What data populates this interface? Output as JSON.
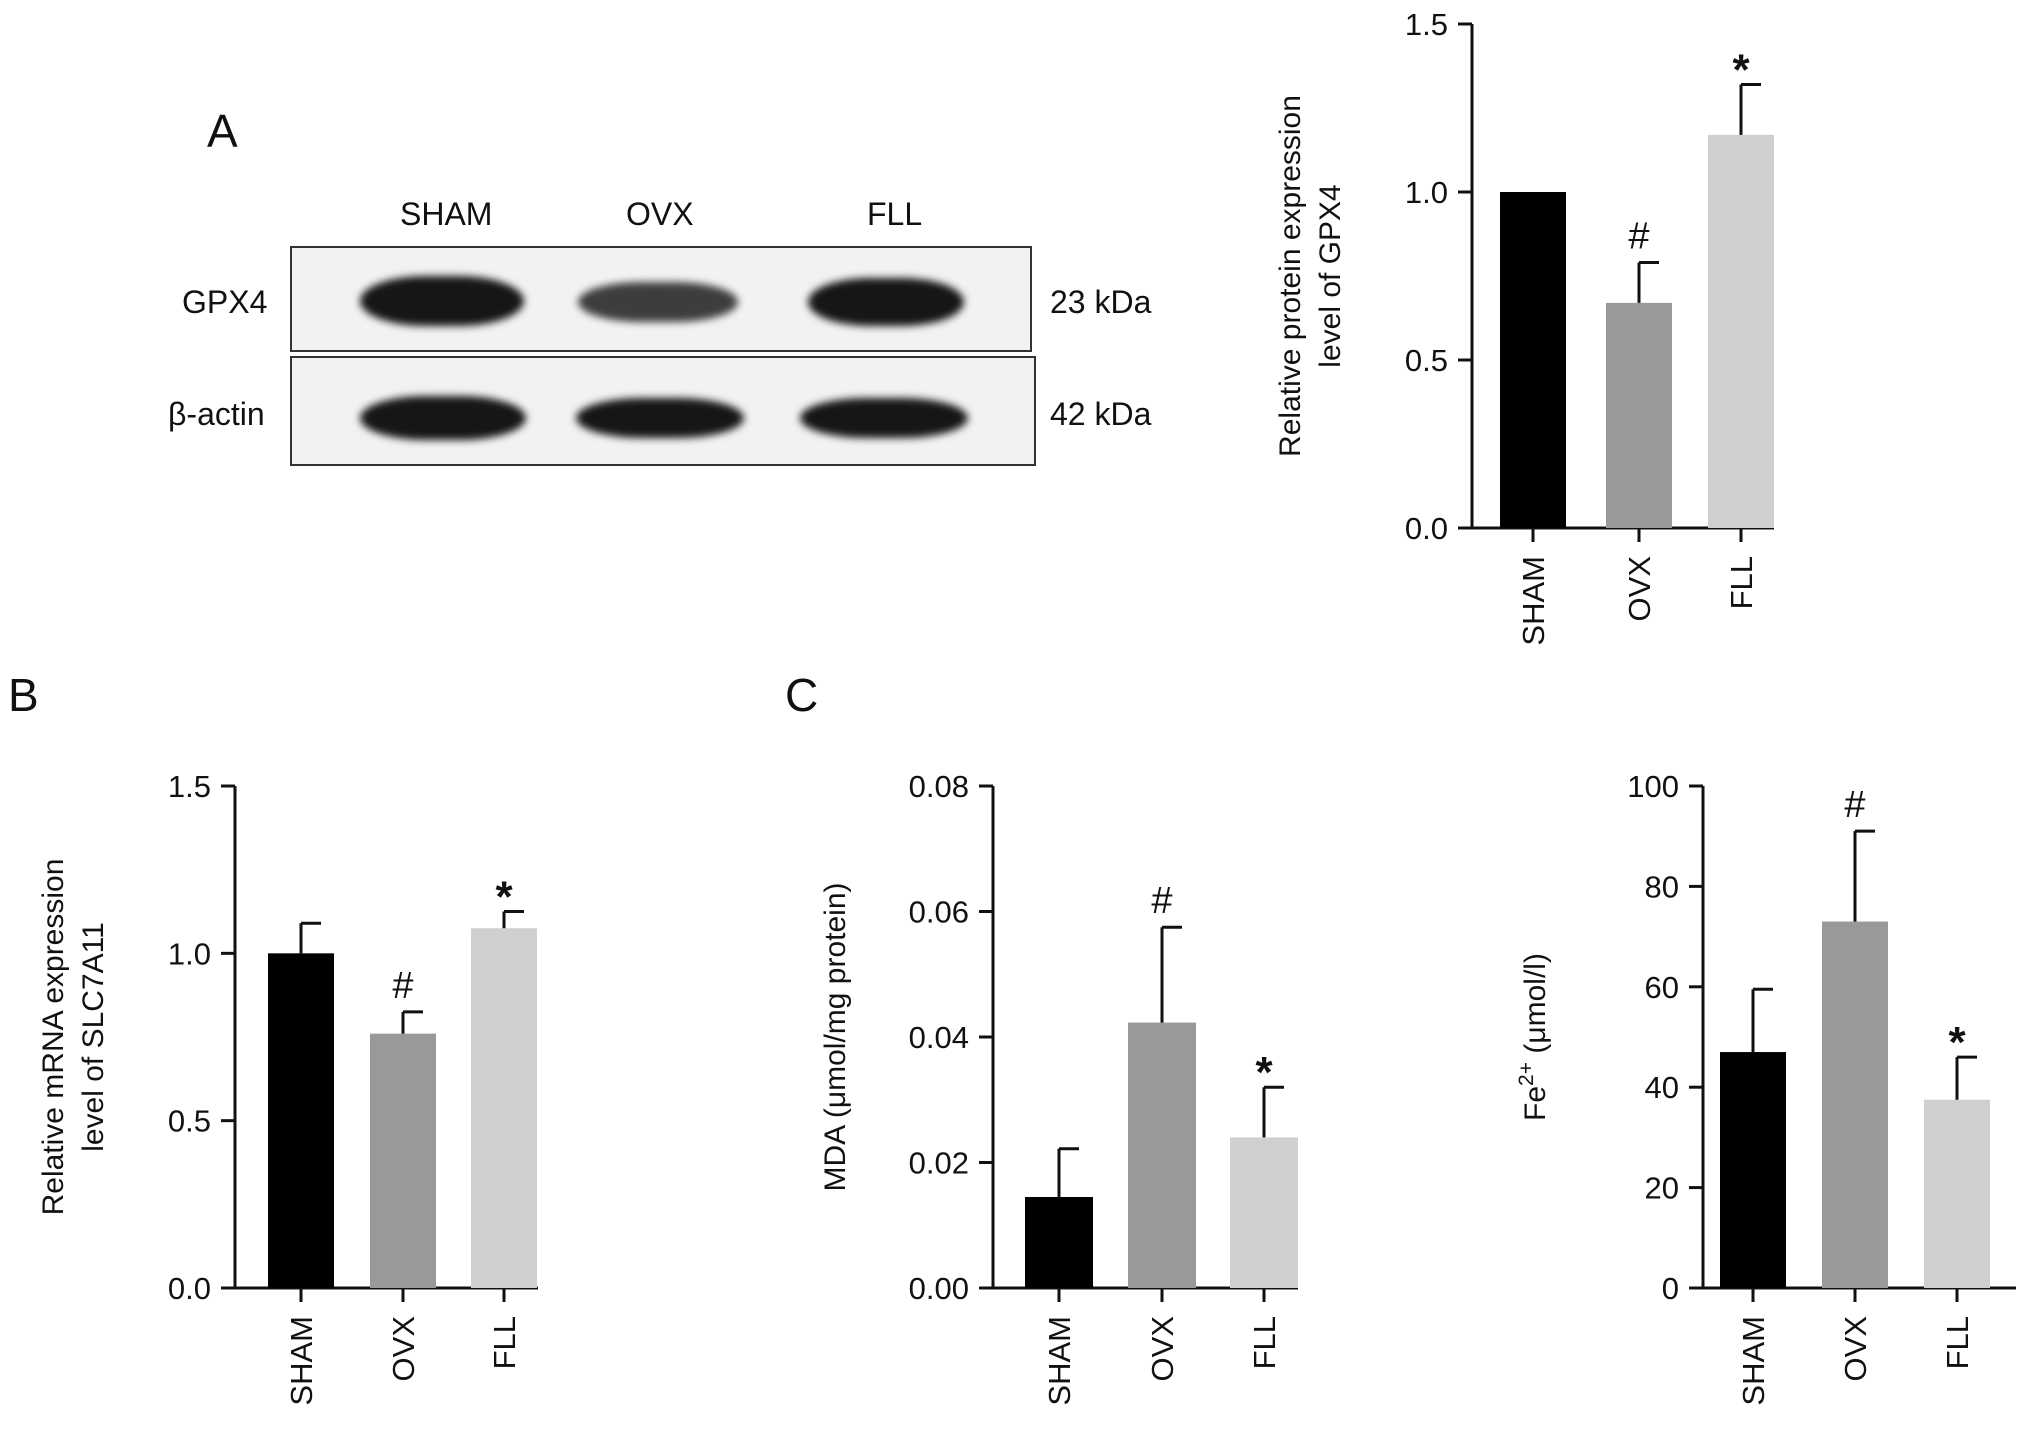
{
  "panel_labels": {
    "a": "A",
    "b": "B",
    "c": "C"
  },
  "western_blot": {
    "lanes": [
      "SHAM",
      "OVX",
      "FLL"
    ],
    "rows": [
      {
        "protein": "GPX4",
        "size": "23 kDa",
        "intensity": [
          1.0,
          0.67,
          1.17
        ]
      },
      {
        "protein": "β-actin",
        "size": "42 kDa",
        "intensity": [
          1.0,
          0.95,
          0.95
        ]
      }
    ]
  },
  "colors": {
    "SHAM": "#000000",
    "OVX": "#999999",
    "FLL": "#cfcfcf"
  },
  "chart_data": [
    {
      "id": "gpx4",
      "type": "bar",
      "categories": [
        "SHAM",
        "OVX",
        "FLL"
      ],
      "values": [
        1.0,
        0.67,
        1.17
      ],
      "errors": [
        0,
        0.12,
        0.15
      ],
      "marks": [
        "",
        "#",
        "*"
      ],
      "ylabel": [
        "Relative protein expression",
        "level of GPX4"
      ],
      "ylim": [
        0,
        1.5
      ],
      "yticks": [
        "0.0",
        "0.5",
        "1.0",
        "1.5"
      ]
    },
    {
      "id": "slc7a11",
      "type": "bar",
      "categories": [
        "SHAM",
        "OVX",
        "FLL"
      ],
      "values": [
        1.0,
        0.76,
        1.075
      ],
      "errors": [
        0.09,
        0.065,
        0.05
      ],
      "marks": [
        "",
        "#",
        "*"
      ],
      "ylabel": [
        "Relative mRNA expression",
        "level of SLC7A11"
      ],
      "ylim": [
        0,
        1.5
      ],
      "yticks": [
        "0.0",
        "0.5",
        "1.0",
        "1.5"
      ]
    },
    {
      "id": "mda",
      "type": "bar",
      "categories": [
        "SHAM",
        "OVX",
        "FLL"
      ],
      "values": [
        0.0145,
        0.0423,
        0.024
      ],
      "errors": [
        0.0077,
        0.0152,
        0.008
      ],
      "marks": [
        "",
        "#",
        "*"
      ],
      "ylabel": [
        "MDA (μmol/mg protein)"
      ],
      "ylim": [
        0,
        0.08
      ],
      "yticks": [
        "0.00",
        "0.02",
        "0.04",
        "0.06",
        "0.08"
      ]
    },
    {
      "id": "fe",
      "type": "bar",
      "categories": [
        "SHAM",
        "OVX",
        "FLL"
      ],
      "values": [
        47,
        73,
        37.5
      ],
      "errors": [
        12.5,
        18,
        8.5
      ],
      "marks": [
        "",
        "#",
        "*"
      ],
      "ylabel": [
        "Fe",
        "2+",
        " (μmol/l)"
      ],
      "ylim": [
        0,
        100
      ],
      "yticks": [
        "0",
        "20",
        "40",
        "60",
        "80",
        "100"
      ]
    }
  ]
}
